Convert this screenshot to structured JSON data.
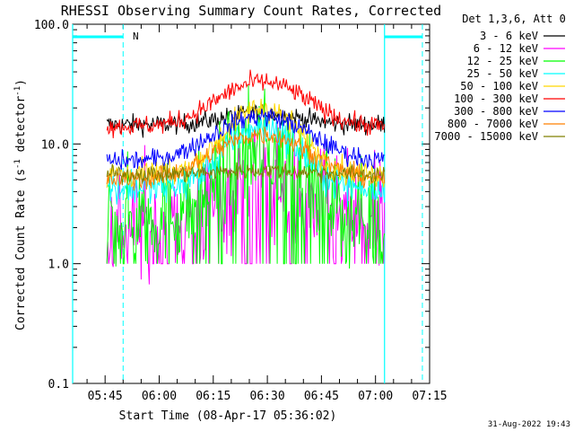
{
  "chart_data": {
    "type": "line",
    "title": "RHESSI Observing Summary Count Rates, Corrected",
    "xlabel": "Start Time (08-Apr-17 05:36:02)",
    "ylabel_main": "Corrected Count Rate (s",
    "ylabel_sup": "-1",
    "ylabel_rest": " detector",
    "ylabel_end": ")",
    "yscale": "log",
    "ylim": [
      0.1,
      100.0
    ],
    "xlim_minutes": [
      36.0,
      135.0
    ],
    "ytick_labels": [
      "100.0",
      "10.0",
      "1.0",
      "0.1"
    ],
    "ytick_values": [
      100,
      10,
      1,
      0.1
    ],
    "xtick_labels": [
      "05:45",
      "06:00",
      "06:15",
      "06:30",
      "06:45",
      "07:00",
      "07:15"
    ],
    "xtick_minutes": [
      45,
      60,
      75,
      90,
      105,
      120,
      135
    ],
    "detector_label": "Det 1,3,6, Att 0",
    "night_marker_label": "N",
    "timestamp": "31-Aug-2022 19:43",
    "data_start_minute": 45.5,
    "data_end_minute": 122.5,
    "flare_peak_minute": 88.5,
    "series": [
      {
        "name": "3 - 6 keV",
        "color": "#000000",
        "base": 14.5,
        "peak": 18,
        "noise": 0.06,
        "width": 14
      },
      {
        "name": "6 - 12 keV",
        "color": "#ff00ff",
        "base": 2.2,
        "peak": 4.6,
        "noise": 0.35,
        "width": 14
      },
      {
        "name": "12 - 25 keV",
        "color": "#00ff00",
        "base": 2.6,
        "peak": 10,
        "noise": 0.3,
        "width": 13
      },
      {
        "name": "25 - 50 keV",
        "color": "#00ffff",
        "base": 4.3,
        "peak": 14,
        "noise": 0.1,
        "width": 12
      },
      {
        "name": "50 - 100 keV",
        "color": "#ffd700",
        "base": 5.6,
        "peak": 20,
        "noise": 0.08,
        "width": 12
      },
      {
        "name": "100 - 300 keV",
        "color": "#ff0000",
        "base": 14,
        "peak": 33,
        "noise": 0.06,
        "width": 15
      },
      {
        "name": "300 - 800 keV",
        "color": "#0000ff",
        "base": 7.2,
        "peak": 17,
        "noise": 0.06,
        "width": 16
      },
      {
        "name": "800 - 7000 keV",
        "color": "#ff8000",
        "base": 5.0,
        "peak": 12,
        "noise": 0.06,
        "width": 16
      },
      {
        "name": "7000 - 15000 keV",
        "color": "#808000",
        "base": 5.6,
        "peak": 6,
        "noise": 0.05,
        "width": 16
      }
    ],
    "saa_intervals": [
      [
        36.0,
        50.0
      ],
      [
        122.5,
        133.0
      ]
    ]
  }
}
